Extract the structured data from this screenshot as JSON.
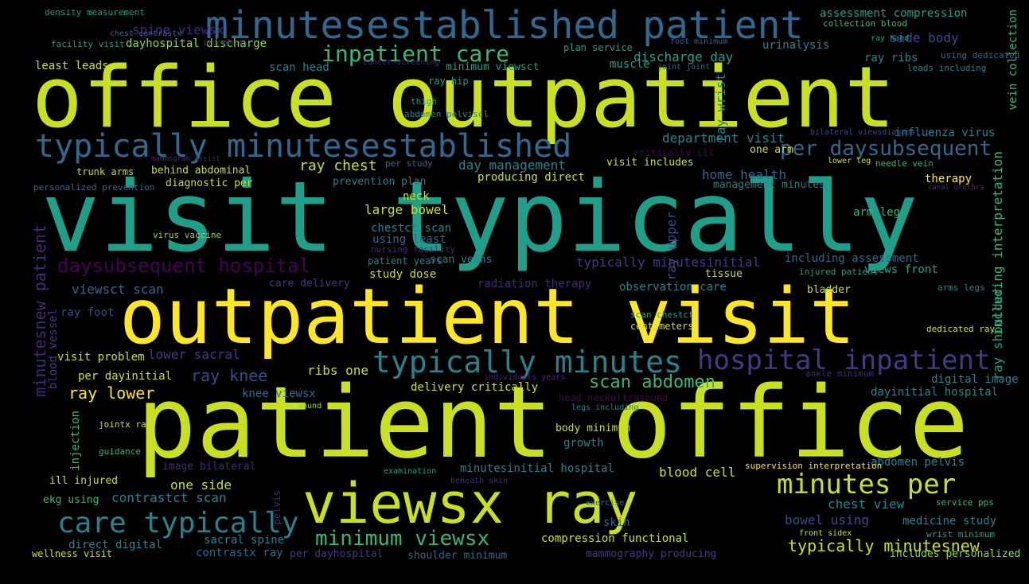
{
  "words": {
    "visit_typically": "visit typically",
    "patient_office": "patient office",
    "office_outpatient": "office outpatient",
    "outpatient_visit": "outpatient visit",
    "viewsx_ray": "viewsx ray",
    "minutesestablished_patient": "minutesestablished patient",
    "typically_minutesestablished": "typically minutesestablished",
    "typically_minutes": "typically minutes",
    "care_typically": "care typically",
    "hospital_inpatient": "hospital inpatient",
    "minutes_per": "minutes per",
    "minimum_viewsx": "minimum viewsx",
    "inpatient_care": "inpatient care",
    "per_daysubsequent": "per daysubsequent",
    "daysubsequent_hospital": "daysubsequent hospital",
    "scan_abdomen": "scan abdomen",
    "ray_lower": "ray lower",
    "ray_knee": "ray knee",
    "typically_minutesnew": "typically minutesnew",
    "minutesnew_patient": "minutesnew patient",
    "including_interpretation": "including interpretation",
    "spine_viewsx": "spine viewsx",
    "side_body": "side body",
    "assessment_compression": "assessment compression",
    "ray_chest": "ray chest",
    "discharge_day": "discharge day",
    "department_visit": "department visit",
    "home_health": "home health",
    "day_management": "day management",
    "large_bowel": "large bowel",
    "neck": "neck",
    "chestct_scan": "chestct scan",
    "using_least": "using least",
    "typically_minutesinitial": "typically minutesinitial",
    "including_assessment": "including assessment",
    "views_front": "views front",
    "arm_leg": "arm leg",
    "viewsct_scan": "viewsct scan",
    "radiation_therapy": "radiation therapy",
    "observation_care": "observation care",
    "study_dose": "study dose",
    "ray_foot": "ray foot",
    "lower_sacral": "lower sacral",
    "visit_problem": "visit problem",
    "per_dayinitial": "per dayinitial",
    "ribs_one": "ribs one",
    "knee_viewsx": "knee viewsx",
    "delivery_critically": "delivery critically",
    "dayinitial_hospital": "dayinitial hospital",
    "digital_image": "digital image",
    "minutesinitial_hospital": "minutesinitial hospital",
    "one_side": "one side",
    "contrastct_scan": "contrastct scan",
    "blood_cell": "blood cell",
    "abdomen_pelvis": "abdomen pelvis",
    "chest_view": "chest view",
    "bowel_using": "bowel using",
    "medicine_study": "medicine study",
    "skin": "skin",
    "compression_functional": "compression functional",
    "sacral_spine": "sacral spine",
    "direct_digital": "direct digital",
    "contrastx_ray": "contrastx ray",
    "wellness_visit": "wellness visit",
    "per_dayhospital": "per dayhospital",
    "shoulder_minimum": "shoulder minimum",
    "mammography_producing": "mammography producing",
    "includes_personalized": "includes personalized",
    "ekg_using": "ekg using",
    "ill_injured": "ill injured",
    "growth": "growth",
    "body_minimum": "body minimum",
    "blood_vessel": "blood vessel",
    "injection": "injection",
    "therapy": "therapy",
    "ray_wrist": "ray wrist",
    "ray_upper": "ray upper",
    "ray_shoulder": "ray shoulder",
    "vein_collection": "vein collection",
    "influenza_virus": "influenza virus",
    "dayhospital_discharge": "dayhospital discharge",
    "plan_service": "plan service",
    "muscle": "muscle",
    "urinalysis": "urinalysis",
    "scan_head": "scan head",
    "minimum_viewsct": "minimum viewsct",
    "ray_hip": "ray hip",
    "least_leads": "least leads",
    "ray_ribs": "ray ribs",
    "density_measurement": "density measurement",
    "facility_visit": "facility visit",
    "collection_blood": "collection blood",
    "ray_hand": "ray hand",
    "behind_abdominal": "behind abdominal",
    "trunk_arms": "trunk arms",
    "diagnostic_per": "diagnostic per",
    "prevention_plan": "prevention plan",
    "producing_direct": "producing direct",
    "visit_includes": "visit includes",
    "management_minutes": "management minutes",
    "one_arm": "one arm",
    "critically_ill": "critically ill",
    "per_study": "per study",
    "patient_years": "patient years",
    "scan_veins": "scan veins",
    "tissue": "tissue",
    "care_delivery": "care delivery",
    "bladder": "bladder",
    "injured_patient": "injured patient",
    "centimeters": "centimeters",
    "scan_chestct": "scan chestct",
    "head_neckultrasound": "head neckultrasound",
    "legs_including": "legs including",
    "image_bilateral": "image bilateral",
    "guidance": "guidance",
    "jointx_ray": "jointx ray",
    "pelvis": "pelvis",
    "supervision_interpretation": "supervision interpretation",
    "service_pps": "service pps",
    "dedicated_ray": "dedicated ray",
    "arms_legs": "arms legs",
    "ankle_minimum": "ankle minimum",
    "needle_vein": "needle vein",
    "lower_leg": "lower leg",
    "using_dedicated": "using dedicated",
    "leads_including": "leads including",
    "front_sidex": "front sidex",
    "wrist_minimum": "wrist minimum",
    "examination": "examination",
    "beneath_skin": "beneath skin",
    "virus_vaccine": "virus vaccine",
    "thigh": "thigh",
    "abdomen_pelviscl": "abdomen pelviscl",
    "personalized_prevention": "personalized prevention",
    "cancer_screening": "cancer screening",
    "procedure": "procedure",
    "chest_contrastx": "chest contrastx",
    "foot_minimum": "foot minimum",
    "joint_joint": "joint joint",
    "bilateral_viewsdiagnostic": "bilateral viewsdiagnostic",
    "mammogram_assist": "mammogram assist",
    "exercise": "exercise",
    "wound": "wound",
    "individuals_years": "individuals years",
    "canal_urethra": "canal urethra",
    "nursing_facility": "nursing facility",
    "viewsx_ray_small": "viewsx ray",
    "mammography_large": "minutesestablished patient"
  }
}
